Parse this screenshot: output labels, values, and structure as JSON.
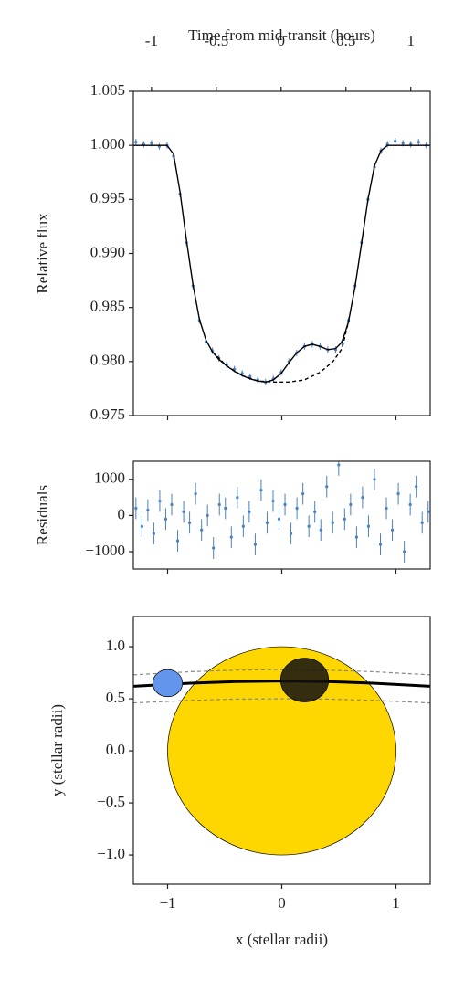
{
  "chart_data": [
    {
      "type": "line",
      "xlabel": "Time from mid-transit (hours)",
      "ylabel": "Relative flux",
      "xaxis": "top",
      "xlim": [
        -1.14,
        1.15
      ],
      "xticks": [
        -1,
        -0.5,
        0,
        0.5,
        1
      ],
      "x2lim": [
        -1.3,
        1.3
      ],
      "x2ticks": [
        -1,
        0,
        1
      ],
      "ylim": [
        0.975,
        1.005
      ],
      "yticks": [
        1.005,
        {
          "value": 1,
          "label": "1.000"
        },
        0.995,
        {
          "value": 0.99,
          "label": "0.990"
        },
        0.985,
        {
          "value": 0.98,
          "label": "0.980"
        },
        0.975
      ],
      "series": [
        {
          "color": "#4a81bf",
          "x": [
            -1.12,
            -1.06,
            -1.0,
            -0.94,
            -0.88,
            -0.83,
            -0.78,
            -0.73,
            -0.68,
            -0.63,
            -0.58,
            -0.53,
            -0.48,
            -0.42,
            -0.36,
            -0.3,
            -0.24,
            -0.18,
            -0.12,
            -0.06,
            0,
            0.06,
            0.12,
            0.18,
            0.24,
            0.3,
            0.36,
            0.42,
            0.47,
            0.52,
            0.57,
            0.62,
            0.67,
            0.72,
            0.77,
            0.82,
            0.88,
            0.94,
            1.0,
            1.06,
            1.12
          ],
          "values": [
            1.0003,
            1.0001,
            1.0002,
            0.9999,
            1.0,
            0.999,
            0.9955,
            0.991,
            0.987,
            0.9838,
            0.9818,
            0.981,
            0.9803,
            0.9797,
            0.9793,
            0.9789,
            0.9786,
            0.9783,
            0.9781,
            0.9784,
            0.979,
            0.98,
            0.9808,
            0.9814,
            0.9816,
            0.9814,
            0.9811,
            0.9811,
            0.9818,
            0.9838,
            0.987,
            0.991,
            0.995,
            0.998,
            0.9995,
            1.0001,
            1.0004,
            1.0002,
            1.0001,
            1.0003,
            1.0
          ],
          "errors": [
            0.0003,
            0.0003,
            0.0003,
            0.0003,
            0.0003,
            0.0003,
            0.0003,
            0.0003,
            0.0003,
            0.0003,
            0.0003,
            0.0003,
            0.0003,
            0.0003,
            0.0003,
            0.0003,
            0.0003,
            0.0003,
            0.0003,
            0.0003,
            0.0003,
            0.0003,
            0.0003,
            0.0003,
            0.0003,
            0.0003,
            0.0003,
            0.0003,
            0.0003,
            0.0003,
            0.0003,
            0.0003,
            0.0003,
            0.0003,
            0.0003,
            0.0003,
            0.0003,
            0.0003,
            0.0003,
            0.0003,
            0.0003
          ]
        },
        {
          "color": "#000000",
          "linestyle": "solid",
          "x": [
            -1.14,
            -0.88,
            -0.83,
            -0.78,
            -0.73,
            -0.68,
            -0.63,
            -0.58,
            -0.53,
            -0.48,
            -0.42,
            -0.36,
            -0.3,
            -0.24,
            -0.18,
            -0.12,
            -0.06,
            0,
            0.06,
            0.12,
            0.18,
            0.24,
            0.3,
            0.36,
            0.42,
            0.47,
            0.52,
            0.57,
            0.62,
            0.67,
            0.72,
            0.77,
            0.82,
            1.15
          ],
          "values": [
            1,
            1,
            0.9992,
            0.9957,
            0.9912,
            0.9871,
            0.9839,
            0.982,
            0.9809,
            0.9802,
            0.9796,
            0.9791,
            0.9787,
            0.9784,
            0.9782,
            0.9781,
            0.9783,
            0.9789,
            0.9799,
            0.9808,
            0.9814,
            0.9816,
            0.9814,
            0.9811,
            0.9812,
            0.9818,
            0.9837,
            0.9869,
            0.9909,
            0.995,
            0.9981,
            0.9995,
            1,
            1
          ]
        },
        {
          "color": "#000000",
          "linestyle": "dashed",
          "x": [
            -0.53,
            -0.42,
            -0.3,
            -0.18,
            -0.06,
            0.06,
            0.18,
            0.3,
            0.4,
            0.47,
            0.52
          ],
          "values": [
            0.9809,
            0.9796,
            0.9787,
            0.9782,
            0.9781,
            0.9781,
            0.9783,
            0.979,
            0.98,
            0.9812,
            0.9837
          ]
        }
      ]
    },
    {
      "type": "scatter",
      "ylabel": "Residuals",
      "xlim": [
        -1.14,
        1.15
      ],
      "x2lim": [
        -1.3,
        1.3
      ],
      "x2ticks": [
        -1,
        0,
        1
      ],
      "ylim": [
        -1480,
        1500
      ],
      "yticks": [
        1000,
        0,
        {
          "value": -1000,
          "label": "−1000"
        }
      ],
      "series": [
        {
          "color": "#4a81bf",
          "x": [
            -1.12,
            -1.074,
            -1.028,
            -0.982,
            -0.936,
            -0.89,
            -0.844,
            -0.798,
            -0.752,
            -0.706,
            -0.66,
            -0.614,
            -0.568,
            -0.522,
            -0.476,
            -0.43,
            -0.384,
            -0.338,
            -0.292,
            -0.246,
            -0.2,
            -0.154,
            -0.108,
            -0.062,
            -0.016,
            0.03,
            0.076,
            0.122,
            0.168,
            0.214,
            0.26,
            0.306,
            0.352,
            0.398,
            0.444,
            0.49,
            0.536,
            0.582,
            0.628,
            0.674,
            0.72,
            0.766,
            0.812,
            0.858,
            0.904,
            0.95,
            0.996,
            1.042,
            1.088,
            1.134
          ],
          "values": [
            200,
            -300,
            150,
            -500,
            400,
            -100,
            300,
            -700,
            100,
            -200,
            600,
            -400,
            0,
            -900,
            300,
            200,
            -600,
            500,
            -300,
            100,
            -800,
            700,
            -200,
            400,
            -100,
            300,
            -500,
            200,
            600,
            -300,
            100,
            -400,
            800,
            -200,
            1400,
            -100,
            300,
            -600,
            500,
            -300,
            1000,
            -800,
            200,
            -400,
            600,
            -1000,
            300,
            800,
            -200,
            100
          ],
          "errors": [
            300,
            300,
            300,
            300,
            300,
            300,
            300,
            300,
            300,
            300,
            300,
            300,
            300,
            300,
            300,
            300,
            300,
            300,
            300,
            300,
            300,
            300,
            300,
            300,
            300,
            300,
            300,
            300,
            300,
            300,
            300,
            300,
            300,
            300,
            300,
            300,
            300,
            300,
            300,
            300,
            300,
            300,
            300,
            300,
            300,
            300,
            300,
            300,
            300,
            300
          ]
        }
      ]
    },
    {
      "type": "orbit",
      "xlabel": "x (stellar radii)",
      "ylabel": "y (stellar radii)",
      "xaxis": "bottom",
      "xlim": [
        -1.3,
        1.3
      ],
      "xticks": [
        {
          "value": -1,
          "label": "−1"
        },
        0,
        1
      ],
      "ylim": [
        -1.28,
        1.29
      ],
      "yticks": [
        {
          "value": 1,
          "label": "1.0"
        },
        0.5,
        {
          "value": 0,
          "label": "0.0"
        },
        {
          "value": -0.5,
          "label": "−0.5"
        },
        {
          "value": -1,
          "label": "−1.0"
        }
      ],
      "star": {
        "x": 0,
        "y": 0,
        "radius": 1,
        "color": "#ffd700"
      },
      "track": {
        "x": [
          -1.3,
          -0.8,
          -0.4,
          0,
          0.4,
          0.8,
          1.3
        ],
        "y": [
          0.62,
          0.65,
          0.665,
          0.67,
          0.665,
          0.65,
          0.62
        ],
        "color": "#000000"
      },
      "bounds": [
        {
          "x": [
            -1.3,
            -0.8,
            -0.4,
            0,
            0.4,
            0.8,
            1.3
          ],
          "y": [
            0.73,
            0.76,
            0.775,
            0.78,
            0.775,
            0.76,
            0.73
          ],
          "color": "#888888"
        },
        {
          "x": [
            -1.3,
            -0.8,
            -0.4,
            0,
            0.4,
            0.8,
            1.3
          ],
          "y": [
            0.46,
            0.485,
            0.497,
            0.5,
            0.497,
            0.485,
            0.46
          ],
          "color": "#888888"
        }
      ],
      "planets": [
        {
          "x": -1,
          "y": 0.65,
          "radius": 0.13,
          "color": "#6495ed"
        },
        {
          "x": 0.2,
          "y": 0.68,
          "radius": 0.21,
          "color": "#111111"
        }
      ]
    }
  ]
}
